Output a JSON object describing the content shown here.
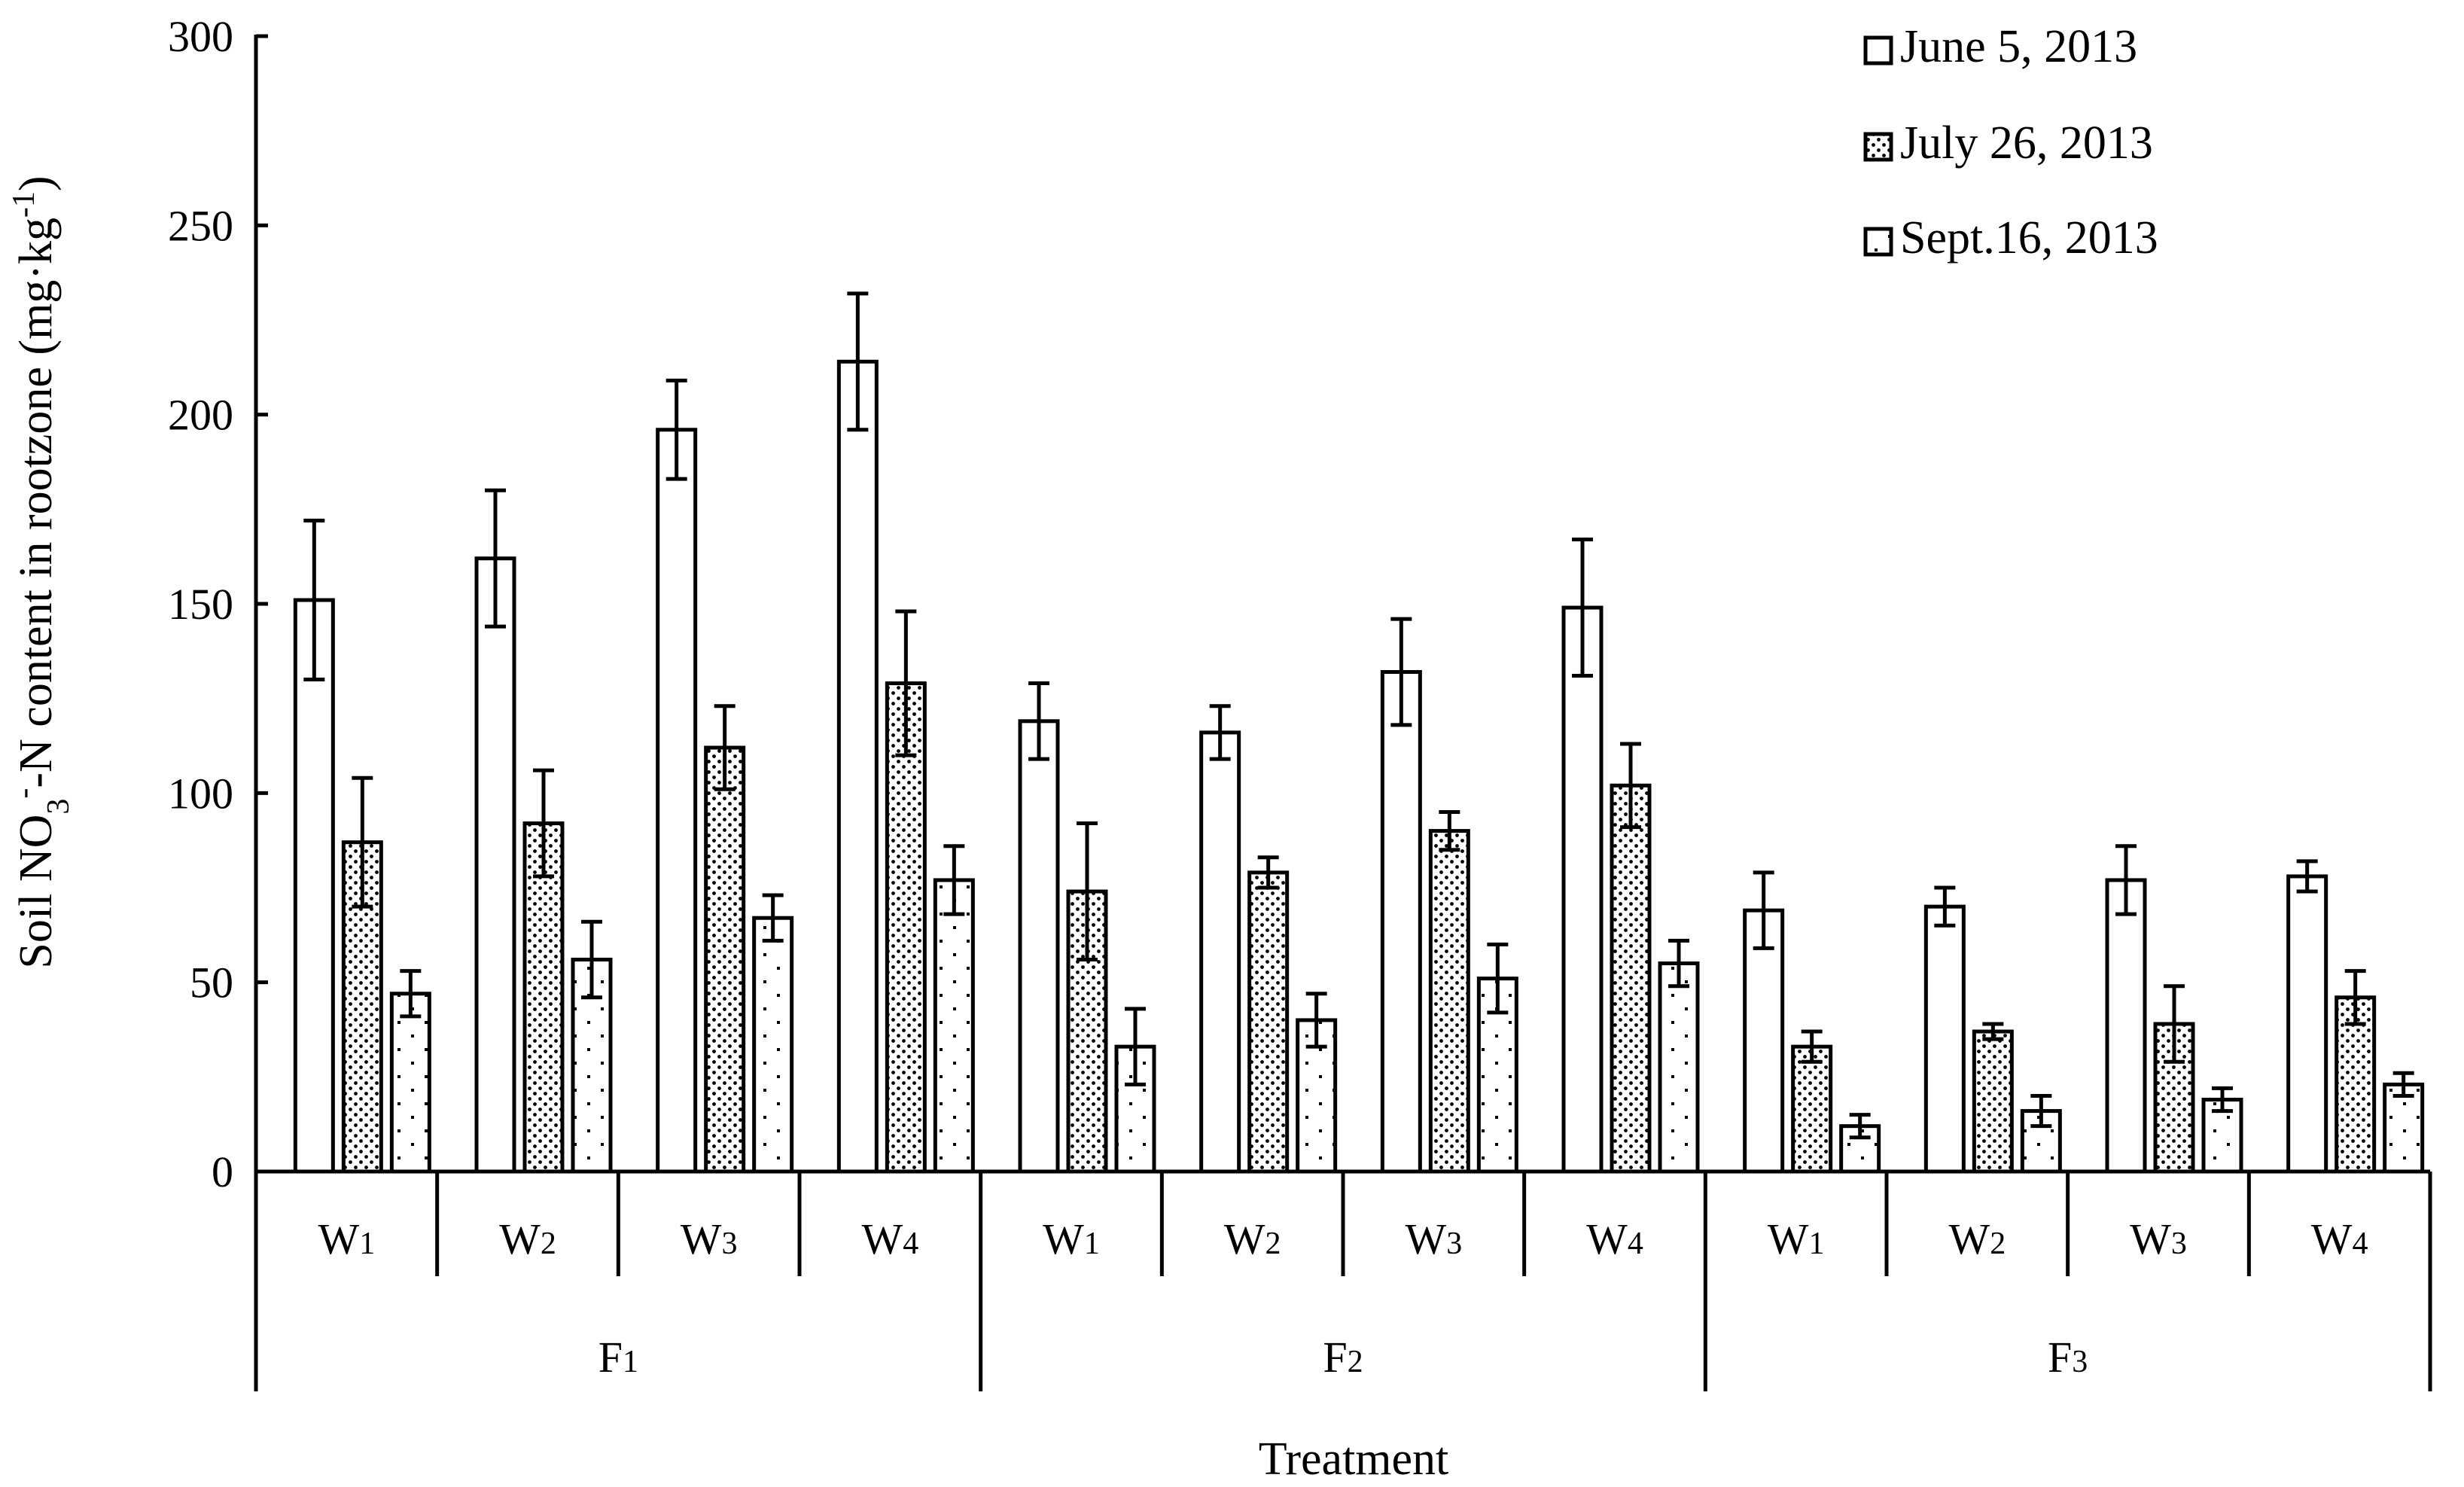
{
  "chart_data": {
    "type": "bar",
    "ylabel_parts": {
      "prefix": "Soil NO",
      "sub": "3",
      "sup": "-",
      "mid": "-N content in rootzone (mg·kg",
      "sup2": "-1",
      "suffix": ")"
    },
    "xlabel": "Treatment",
    "ylim": [
      0,
      300
    ],
    "yticks": [
      "0",
      "50",
      "100",
      "150",
      "200",
      "250",
      "300"
    ],
    "groups": [
      {
        "label": "F",
        "sub": "1",
        "subcategories": [
          {
            "label": "W",
            "sub": "1"
          },
          {
            "label": "W",
            "sub": "2"
          },
          {
            "label": "W",
            "sub": "3"
          },
          {
            "label": "W",
            "sub": "4"
          }
        ]
      },
      {
        "label": "F",
        "sub": "2",
        "subcategories": [
          {
            "label": "W",
            "sub": "1"
          },
          {
            "label": "W",
            "sub": "2"
          },
          {
            "label": "W",
            "sub": "3"
          },
          {
            "label": "W",
            "sub": "4"
          }
        ]
      },
      {
        "label": "F",
        "sub": "3",
        "subcategories": [
          {
            "label": "W",
            "sub": "1"
          },
          {
            "label": "W",
            "sub": "2"
          },
          {
            "label": "W",
            "sub": "3"
          },
          {
            "label": "W",
            "sub": "4"
          }
        ]
      }
    ],
    "series": [
      {
        "name": "June 5, 2013",
        "pattern": "open",
        "values": [
          151,
          162,
          196,
          214,
          119,
          116,
          132,
          149,
          69,
          70,
          77,
          78
        ],
        "errors": [
          21,
          18,
          13,
          18,
          10,
          7,
          14,
          18,
          10,
          5,
          9,
          4
        ]
      },
      {
        "name": "July 26, 2013",
        "pattern": "dense-dots",
        "values": [
          87,
          92,
          112,
          129,
          74,
          79,
          90,
          102,
          33,
          37,
          39,
          46
        ],
        "errors": [
          17,
          14,
          11,
          19,
          18,
          4,
          5,
          11,
          4,
          2,
          10,
          7
        ]
      },
      {
        "name": "Sept.16, 2013",
        "pattern": "sparse-dots",
        "values": [
          47,
          56,
          67,
          77,
          33,
          40,
          51,
          55,
          12,
          16,
          19,
          23
        ],
        "errors": [
          6,
          10,
          6,
          9,
          10,
          7,
          9,
          6,
          3,
          4,
          3,
          3
        ]
      }
    ]
  }
}
